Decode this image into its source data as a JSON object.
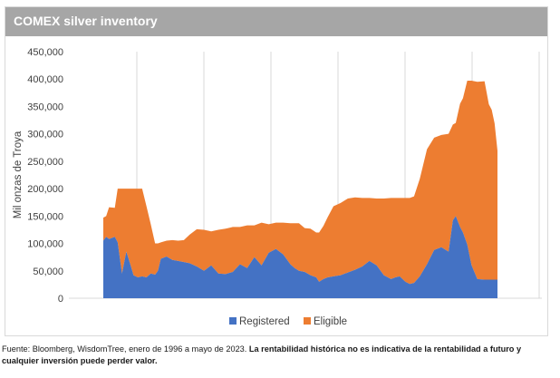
{
  "header": {
    "title": "COMEX silver inventory"
  },
  "footer": {
    "source": "Fuente: Bloomberg, WisdomTree, enero de 1996 a mayo de 2023. ",
    "disclaimer": "La rentabilidad histórica no es indicativa de la rentabilidad a futuro y cualquier inversión puede perder valor."
  },
  "colors": {
    "registered": "#4472c4",
    "eligible": "#ed7d31",
    "header_bg": "#a6a6a6",
    "grid": "#d9d9d9"
  },
  "chart_data": {
    "type": "area",
    "stacked": true,
    "title": "",
    "xlabel": "",
    "ylabel": "Mil onzas de Troya",
    "ylim": [
      0,
      450000
    ],
    "yticks": [
      0,
      50000,
      100000,
      150000,
      200000,
      250000,
      300000,
      350000,
      400000,
      450000
    ],
    "ytick_labels": [
      "0",
      "50,000",
      "100,000",
      "150,000",
      "200,000",
      "250,000",
      "300,000",
      "350,000",
      "400,000",
      "450,000"
    ],
    "x_range": [
      1996.0,
      2023.4
    ],
    "grid": "vertical",
    "legend": "bottom",
    "x": [
      1996.0,
      1996.2,
      1996.4,
      1996.8,
      1997.0,
      1997.3,
      1997.6,
      1997.9,
      1998.1,
      1998.4,
      1998.7,
      1999.0,
      1999.3,
      1999.6,
      1999.8,
      2000.0,
      2000.4,
      2000.8,
      2001.2,
      2001.6,
      2002.0,
      2002.5,
      2003.0,
      2003.5,
      2004.0,
      2004.5,
      2005.0,
      2005.5,
      2006.0,
      2006.5,
      2007.0,
      2007.5,
      2008.0,
      2008.5,
      2009.0,
      2009.3,
      2009.6,
      2010.0,
      2010.4,
      2010.8,
      2011.0,
      2011.3,
      2011.6,
      2012.0,
      2012.5,
      2013.0,
      2013.5,
      2014.0,
      2014.5,
      2015.0,
      2015.5,
      2016.0,
      2016.3,
      2016.6,
      2017.0,
      2017.3,
      2017.6,
      2018.0,
      2018.5,
      2019.0,
      2019.5,
      2020.0,
      2020.3,
      2020.5,
      2020.8,
      2021.0,
      2021.3,
      2021.6,
      2022.0,
      2022.5,
      2022.8,
      2023.0,
      2023.2,
      2023.4
    ],
    "series": [
      {
        "name": "Registered",
        "values": [
          105000,
          112000,
          108000,
          112000,
          102000,
          45000,
          85000,
          60000,
          42000,
          38000,
          40000,
          38000,
          45000,
          43000,
          50000,
          72000,
          76000,
          70000,
          68000,
          66000,
          64000,
          58000,
          50000,
          60000,
          45000,
          44000,
          48000,
          62000,
          55000,
          75000,
          60000,
          83000,
          90000,
          80000,
          62000,
          55000,
          50000,
          48000,
          42000,
          38000,
          30000,
          35000,
          38000,
          40000,
          42000,
          47000,
          52000,
          58000,
          68000,
          60000,
          42000,
          35000,
          38000,
          40000,
          30000,
          26000,
          28000,
          40000,
          62000,
          88000,
          93000,
          85000,
          142000,
          150000,
          130000,
          120000,
          98000,
          60000,
          35000,
          34000,
          34000,
          34000,
          34000,
          34000
        ]
      },
      {
        "name": "Eligible",
        "values": [
          42000,
          38000,
          58000,
          53000,
          98000,
          155000,
          115000,
          140000,
          158000,
          162000,
          160000,
          130000,
          90000,
          57000,
          50000,
          30000,
          29000,
          36000,
          37000,
          40000,
          52000,
          68000,
          75000,
          62000,
          80000,
          83000,
          82000,
          68000,
          78000,
          58000,
          78000,
          52000,
          48000,
          58000,
          75000,
          82000,
          87000,
          80000,
          85000,
          82000,
          90000,
          97000,
          110000,
          128000,
          132000,
          135000,
          132000,
          125000,
          115000,
          122000,
          140000,
          148000,
          145000,
          143000,
          153000,
          157000,
          158000,
          178000,
          210000,
          205000,
          205000,
          215000,
          175000,
          170000,
          225000,
          245000,
          299000,
          337000,
          360000,
          362000,
          320000,
          310000,
          285000,
          235000
        ]
      }
    ]
  },
  "legend": {
    "registered_label": "Registered",
    "eligible_label": "Eligible"
  }
}
